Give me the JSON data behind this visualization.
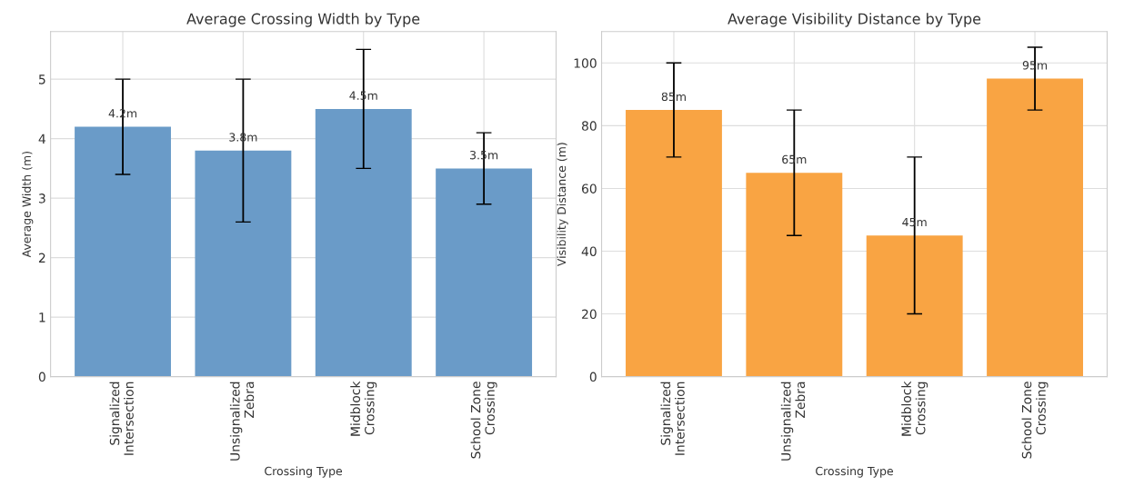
{
  "chart_data": [
    {
      "type": "bar",
      "title": "Average Crossing Width by Type",
      "xlabel": "Crossing Type",
      "ylabel": "Average Width (m)",
      "categories": [
        "Signalized\nIntersection",
        "Unsignalized\nZebra",
        "Midblock\nCrossing",
        "School Zone\nCrossing"
      ],
      "values": [
        4.2,
        3.8,
        4.5,
        3.5
      ],
      "color": "#6a9bc8",
      "errors": [
        0.8,
        1.2,
        1.0,
        0.6
      ],
      "value_labels": [
        "4.2m",
        "3.8m",
        "4.5m",
        "3.5m"
      ],
      "ylim": [
        0,
        5.8
      ],
      "yticks": [
        0,
        1,
        2,
        3,
        4,
        5
      ],
      "grid": true
    },
    {
      "type": "bar",
      "title": "Average Visibility Distance by Type",
      "xlabel": "Crossing Type",
      "ylabel": "Visibility Distance (m)",
      "categories": [
        "Signalized\nIntersection",
        "Unsignalized\nZebra",
        "Midblock\nCrossing",
        "School Zone\nCrossing"
      ],
      "values": [
        85,
        65,
        45,
        95
      ],
      "color": "#f9a443",
      "errors": [
        15,
        20,
        25,
        10
      ],
      "value_labels": [
        "85m",
        "65m",
        "45m",
        "95m"
      ],
      "ylim": [
        0,
        110
      ],
      "yticks": [
        0,
        20,
        40,
        60,
        80,
        100
      ],
      "grid": true
    }
  ]
}
